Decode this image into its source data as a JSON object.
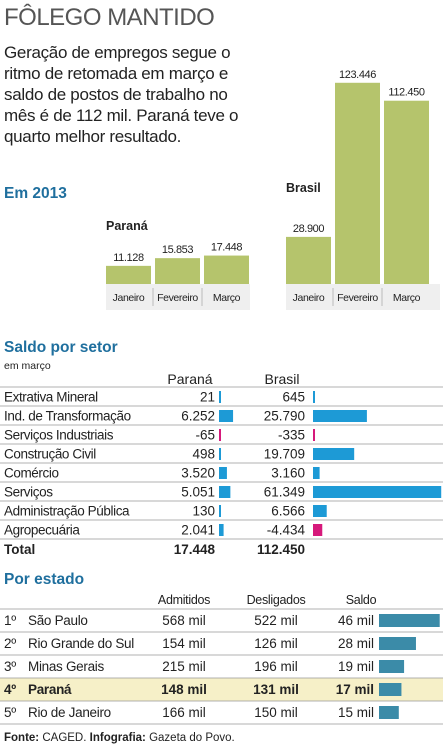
{
  "header": {
    "title": "FÔLEGO MANTIDO",
    "subtitle": "Geração de empregos segue o ritmo de retomada em março e saldo de postos de trabalho no mês é de 112 mil. Paraná teve o quarto melhor resultado."
  },
  "colors": {
    "bar_green": "#b5c46c",
    "bar_green_dark": "#8e9c45",
    "accent_blue": "#1f6f9e",
    "bar_blue": "#1d9ad6",
    "bar_magenta": "#d6197b",
    "teal": "#3b8ba8",
    "highlight_row": "#f6f0c8",
    "row_line": "#7a7a7a"
  },
  "year_section": {
    "label": "Em 2013"
  },
  "chart_data": [
    {
      "type": "bar",
      "title": "Paraná",
      "categories": [
        "Janeiro",
        "Fevereiro",
        "Março"
      ],
      "values": [
        11128,
        15853,
        17448
      ],
      "value_labels": [
        "11.128",
        "15.853",
        "17.448"
      ]
    },
    {
      "type": "bar",
      "title": "Brasil",
      "categories": [
        "Janeiro",
        "Fevereiro",
        "Março"
      ],
      "values": [
        28900,
        123446,
        112450
      ],
      "value_labels": [
        "28.900",
        "123.446",
        "112.450"
      ]
    },
    {
      "type": "table",
      "title": "Saldo por setor",
      "subtitle": "em março",
      "columns": [
        "Paraná",
        "Brasil"
      ],
      "rows": [
        {
          "sector": "Extrativa Mineral",
          "parana": 21,
          "parana_label": "21",
          "brasil": 645,
          "brasil_label": "645"
        },
        {
          "sector": "Ind. de Transformação",
          "parana": 6252,
          "parana_label": "6.252",
          "brasil": 25790,
          "brasil_label": "25.790"
        },
        {
          "sector": "Serviços Industriais",
          "parana": -65,
          "parana_label": "-65",
          "brasil": -335,
          "brasil_label": "-335"
        },
        {
          "sector": "Construção Civil",
          "parana": 498,
          "parana_label": "498",
          "brasil": 19709,
          "brasil_label": "19.709"
        },
        {
          "sector": "Comércio",
          "parana": 3520,
          "parana_label": "3.520",
          "brasil": 3160,
          "brasil_label": "3.160"
        },
        {
          "sector": "Serviços",
          "parana": 5051,
          "parana_label": "5.051",
          "brasil": 61349,
          "brasil_label": "61.349"
        },
        {
          "sector": "Administração Pública",
          "parana": 130,
          "parana_label": "130",
          "brasil": 6566,
          "brasil_label": "6.566"
        },
        {
          "sector": "Agropecuária",
          "parana": 2041,
          "parana_label": "2.041",
          "brasil": -4434,
          "brasil_label": "-4.434"
        }
      ],
      "total": {
        "label": "Total",
        "parana": "17.448",
        "brasil": "112.450"
      }
    },
    {
      "type": "table",
      "title": "Por estado",
      "columns": [
        "Admitidos",
        "Desligados",
        "Saldo"
      ],
      "rows": [
        {
          "rank": "1º",
          "state": "São Paulo",
          "admitidos": "568 mil",
          "desligados": "522 mil",
          "saldo": "46 mil",
          "saldo_value": 46,
          "highlight": false
        },
        {
          "rank": "2º",
          "state": "Rio Grande do Sul",
          "admitidos": "154 mil",
          "desligados": "126 mil",
          "saldo": "28 mil",
          "saldo_value": 28,
          "highlight": false
        },
        {
          "rank": "3º",
          "state": "Minas Gerais",
          "admitidos": "215 mil",
          "desligados": "196 mil",
          "saldo": "19 mil",
          "saldo_value": 19,
          "highlight": false
        },
        {
          "rank": "4º",
          "state": "Paraná",
          "admitidos": "148 mil",
          "desligados": "131 mil",
          "saldo": "17 mil",
          "saldo_value": 17,
          "highlight": true
        },
        {
          "rank": "5º",
          "state": "Rio de Janeiro",
          "admitidos": "166 mil",
          "desligados": "150 mil",
          "saldo": "15 mil",
          "saldo_value": 15,
          "highlight": false
        }
      ]
    }
  ],
  "footer": {
    "source_label": "Fonte:",
    "source": "CAGED.",
    "credit_label": "Infografia:",
    "credit": "Gazeta do Povo."
  }
}
